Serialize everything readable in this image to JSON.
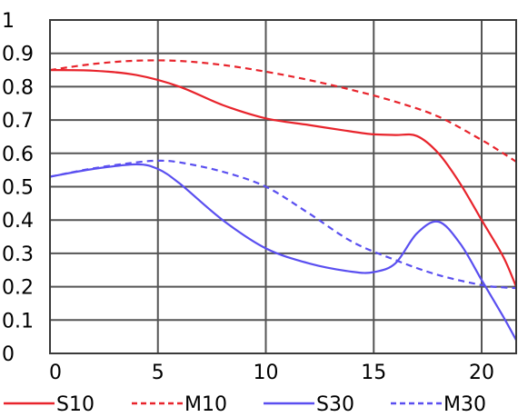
{
  "chart_data": {
    "type": "line",
    "title": "",
    "xlabel": "",
    "ylabel": "",
    "xlim": [
      0,
      21.6
    ],
    "ylim": [
      0,
      1
    ],
    "x_ticks": [
      0,
      5,
      10,
      15,
      20
    ],
    "y_ticks": [
      0,
      0.1,
      0.2,
      0.3,
      0.4,
      0.5,
      0.6,
      0.7,
      0.8,
      0.9,
      1
    ],
    "x_tick_labels": [
      "0",
      "5",
      "10",
      "15",
      "20"
    ],
    "y_tick_labels": [
      "0",
      "0.1",
      "0.2",
      "0.3",
      "0.4",
      "0.5",
      "0.6",
      "0.7",
      "0.8",
      "0.9",
      "1"
    ],
    "grid": true,
    "legend_position": "bottom",
    "series": [
      {
        "name": "S10",
        "color": "#e8242c",
        "dash": "solid",
        "x": [
          0,
          2,
          4,
          6,
          8,
          10,
          12,
          14,
          15,
          16,
          17,
          18,
          19,
          20,
          21,
          21.6
        ],
        "y": [
          0.85,
          0.848,
          0.835,
          0.8,
          0.745,
          0.705,
          0.685,
          0.665,
          0.657,
          0.655,
          0.652,
          0.6,
          0.51,
          0.4,
          0.29,
          0.2
        ]
      },
      {
        "name": "M10",
        "color": "#e8242c",
        "dash": "dashed",
        "x": [
          0,
          2,
          4,
          6,
          8,
          10,
          12,
          14,
          16,
          18,
          20,
          21,
          21.6
        ],
        "y": [
          0.85,
          0.868,
          0.878,
          0.877,
          0.865,
          0.845,
          0.82,
          0.79,
          0.755,
          0.71,
          0.64,
          0.6,
          0.575
        ]
      },
      {
        "name": "S30",
        "color": "#5a4ff0",
        "dash": "solid",
        "x": [
          0,
          2,
          4,
          5,
          6,
          8,
          10,
          12,
          14,
          15,
          16,
          17,
          18,
          19,
          20,
          21,
          21.6
        ],
        "y": [
          0.53,
          0.553,
          0.567,
          0.553,
          0.51,
          0.4,
          0.315,
          0.27,
          0.245,
          0.244,
          0.27,
          0.36,
          0.395,
          0.33,
          0.22,
          0.11,
          0.04
        ]
      },
      {
        "name": "M30",
        "color": "#5a4ff0",
        "dash": "dashed",
        "x": [
          0,
          2,
          4,
          5,
          6,
          8,
          10,
          12,
          14,
          16,
          18,
          20,
          21,
          21.6
        ],
        "y": [
          0.53,
          0.555,
          0.573,
          0.578,
          0.573,
          0.545,
          0.5,
          0.42,
          0.335,
          0.28,
          0.235,
          0.205,
          0.198,
          0.196
        ]
      }
    ]
  }
}
